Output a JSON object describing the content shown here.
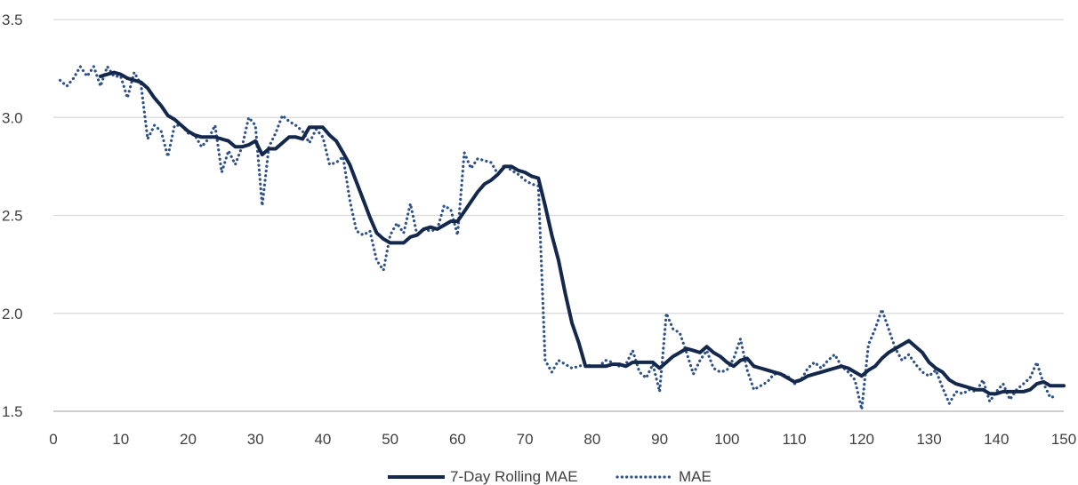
{
  "chart_data": {
    "type": "line",
    "title": "",
    "xlabel": "",
    "ylabel": "",
    "xlim": [
      0,
      150
    ],
    "ylim": [
      1.5,
      3.5
    ],
    "x_ticks": [
      0,
      10,
      20,
      30,
      40,
      50,
      60,
      70,
      80,
      90,
      100,
      110,
      120,
      130,
      140,
      150
    ],
    "y_ticks": [
      1.5,
      2.0,
      2.5,
      3.0,
      3.5
    ],
    "x_tick_labels": [
      "0",
      "10",
      "20",
      "30",
      "40",
      "50",
      "60",
      "70",
      "80",
      "90",
      "100",
      "110",
      "120",
      "130",
      "140",
      "150"
    ],
    "y_tick_labels": [
      "1.5",
      "2.0",
      "2.5",
      "3.0",
      "3.5"
    ],
    "grid": "horizontal",
    "legend_position": "bottom",
    "colors": {
      "rolling": "#14284b",
      "mae": "#2e5288",
      "grid": "#d9d9d9",
      "axis": "#bfbfbf"
    },
    "series": [
      {
        "name": "7-Day Rolling MAE",
        "style": "solid",
        "points": [
          [
            7,
            3.21
          ],
          [
            8,
            3.22
          ],
          [
            9,
            3.23
          ],
          [
            10,
            3.22
          ],
          [
            11,
            3.2
          ],
          [
            12,
            3.19
          ],
          [
            13,
            3.18
          ],
          [
            14,
            3.15
          ],
          [
            15,
            3.1
          ],
          [
            16,
            3.06
          ],
          [
            17,
            3.01
          ],
          [
            18,
            2.99
          ],
          [
            19,
            2.96
          ],
          [
            20,
            2.93
          ],
          [
            21,
            2.91
          ],
          [
            22,
            2.9
          ],
          [
            23,
            2.9
          ],
          [
            24,
            2.9
          ],
          [
            25,
            2.89
          ],
          [
            26,
            2.88
          ],
          [
            27,
            2.85
          ],
          [
            28,
            2.85
          ],
          [
            29,
            2.86
          ],
          [
            30,
            2.88
          ],
          [
            31,
            2.81
          ],
          [
            32,
            2.84
          ],
          [
            33,
            2.84
          ],
          [
            34,
            2.87
          ],
          [
            35,
            2.9
          ],
          [
            36,
            2.9
          ],
          [
            37,
            2.89
          ],
          [
            38,
            2.95
          ],
          [
            39,
            2.95
          ],
          [
            40,
            2.95
          ],
          [
            41,
            2.91
          ],
          [
            42,
            2.88
          ],
          [
            43,
            2.82
          ],
          [
            44,
            2.76
          ],
          [
            45,
            2.67
          ],
          [
            46,
            2.58
          ],
          [
            47,
            2.49
          ],
          [
            48,
            2.41
          ],
          [
            49,
            2.38
          ],
          [
            50,
            2.36
          ],
          [
            51,
            2.36
          ],
          [
            52,
            2.36
          ],
          [
            53,
            2.39
          ],
          [
            54,
            2.4
          ],
          [
            55,
            2.43
          ],
          [
            56,
            2.44
          ],
          [
            57,
            2.43
          ],
          [
            58,
            2.45
          ],
          [
            59,
            2.47
          ],
          [
            60,
            2.47
          ],
          [
            61,
            2.52
          ],
          [
            62,
            2.57
          ],
          [
            63,
            2.62
          ],
          [
            64,
            2.66
          ],
          [
            65,
            2.68
          ],
          [
            66,
            2.71
          ],
          [
            67,
            2.75
          ],
          [
            68,
            2.75
          ],
          [
            69,
            2.73
          ],
          [
            70,
            2.72
          ],
          [
            71,
            2.7
          ],
          [
            72,
            2.69
          ],
          [
            73,
            2.55
          ],
          [
            74,
            2.4
          ],
          [
            75,
            2.27
          ],
          [
            76,
            2.1
          ],
          [
            77,
            1.95
          ],
          [
            78,
            1.85
          ],
          [
            79,
            1.73
          ],
          [
            80,
            1.73
          ],
          [
            81,
            1.73
          ],
          [
            82,
            1.73
          ],
          [
            83,
            1.74
          ],
          [
            84,
            1.74
          ],
          [
            85,
            1.73
          ],
          [
            86,
            1.75
          ],
          [
            87,
            1.75
          ],
          [
            88,
            1.75
          ],
          [
            89,
            1.75
          ],
          [
            90,
            1.72
          ],
          [
            91,
            1.75
          ],
          [
            92,
            1.78
          ],
          [
            93,
            1.8
          ],
          [
            94,
            1.82
          ],
          [
            95,
            1.81
          ],
          [
            96,
            1.8
          ],
          [
            97,
            1.83
          ],
          [
            98,
            1.8
          ],
          [
            99,
            1.78
          ],
          [
            100,
            1.75
          ],
          [
            101,
            1.73
          ],
          [
            102,
            1.76
          ],
          [
            103,
            1.77
          ],
          [
            104,
            1.73
          ],
          [
            105,
            1.72
          ],
          [
            106,
            1.71
          ],
          [
            107,
            1.7
          ],
          [
            108,
            1.69
          ],
          [
            109,
            1.67
          ],
          [
            110,
            1.65
          ],
          [
            111,
            1.66
          ],
          [
            112,
            1.68
          ],
          [
            113,
            1.69
          ],
          [
            114,
            1.7
          ],
          [
            115,
            1.71
          ],
          [
            116,
            1.72
          ],
          [
            117,
            1.73
          ],
          [
            118,
            1.72
          ],
          [
            119,
            1.7
          ],
          [
            120,
            1.68
          ],
          [
            121,
            1.71
          ],
          [
            122,
            1.73
          ],
          [
            123,
            1.77
          ],
          [
            124,
            1.8
          ],
          [
            125,
            1.82
          ],
          [
            126,
            1.84
          ],
          [
            127,
            1.86
          ],
          [
            128,
            1.83
          ],
          [
            129,
            1.8
          ],
          [
            130,
            1.75
          ],
          [
            131,
            1.72
          ],
          [
            132,
            1.7
          ],
          [
            133,
            1.66
          ],
          [
            134,
            1.64
          ],
          [
            135,
            1.63
          ],
          [
            136,
            1.62
          ],
          [
            137,
            1.61
          ],
          [
            138,
            1.61
          ],
          [
            139,
            1.59
          ],
          [
            140,
            1.59
          ],
          [
            141,
            1.6
          ],
          [
            142,
            1.6
          ],
          [
            143,
            1.6
          ],
          [
            144,
            1.6
          ],
          [
            145,
            1.61
          ],
          [
            146,
            1.64
          ],
          [
            147,
            1.65
          ],
          [
            148,
            1.63
          ],
          [
            149,
            1.63
          ],
          [
            150,
            1.63
          ]
        ]
      },
      {
        "name": "MAE",
        "style": "dotted",
        "points": [
          [
            1,
            3.19
          ],
          [
            2,
            3.16
          ],
          [
            3,
            3.2
          ],
          [
            4,
            3.26
          ],
          [
            5,
            3.21
          ],
          [
            6,
            3.26
          ],
          [
            7,
            3.16
          ],
          [
            8,
            3.26
          ],
          [
            9,
            3.21
          ],
          [
            10,
            3.21
          ],
          [
            11,
            3.1
          ],
          [
            12,
            3.23
          ],
          [
            13,
            3.17
          ],
          [
            14,
            2.89
          ],
          [
            15,
            2.96
          ],
          [
            16,
            2.93
          ],
          [
            17,
            2.8
          ],
          [
            18,
            2.96
          ],
          [
            19,
            2.96
          ],
          [
            20,
            2.92
          ],
          [
            21,
            2.91
          ],
          [
            22,
            2.85
          ],
          [
            23,
            2.89
          ],
          [
            24,
            2.96
          ],
          [
            25,
            2.72
          ],
          [
            26,
            2.83
          ],
          [
            27,
            2.76
          ],
          [
            28,
            2.85
          ],
          [
            29,
            3.0
          ],
          [
            30,
            2.96
          ],
          [
            31,
            2.55
          ],
          [
            32,
            2.85
          ],
          [
            33,
            2.92
          ],
          [
            34,
            3.01
          ],
          [
            35,
            2.98
          ],
          [
            36,
            2.96
          ],
          [
            37,
            2.93
          ],
          [
            38,
            2.87
          ],
          [
            39,
            2.94
          ],
          [
            40,
            2.9
          ],
          [
            41,
            2.76
          ],
          [
            42,
            2.77
          ],
          [
            43,
            2.8
          ],
          [
            44,
            2.58
          ],
          [
            45,
            2.42
          ],
          [
            46,
            2.4
          ],
          [
            47,
            2.42
          ],
          [
            48,
            2.27
          ],
          [
            49,
            2.22
          ],
          [
            50,
            2.4
          ],
          [
            51,
            2.46
          ],
          [
            52,
            2.41
          ],
          [
            53,
            2.56
          ],
          [
            54,
            2.4
          ],
          [
            55,
            2.43
          ],
          [
            56,
            2.42
          ],
          [
            57,
            2.43
          ],
          [
            58,
            2.55
          ],
          [
            59,
            2.53
          ],
          [
            60,
            2.4
          ],
          [
            61,
            2.82
          ],
          [
            62,
            2.74
          ],
          [
            63,
            2.79
          ],
          [
            64,
            2.78
          ],
          [
            65,
            2.77
          ],
          [
            66,
            2.71
          ],
          [
            67,
            2.76
          ],
          [
            68,
            2.73
          ],
          [
            69,
            2.71
          ],
          [
            70,
            2.68
          ],
          [
            71,
            2.66
          ],
          [
            72,
            2.65
          ],
          [
            73,
            1.76
          ],
          [
            74,
            1.7
          ],
          [
            75,
            1.76
          ],
          [
            76,
            1.74
          ],
          [
            77,
            1.72
          ],
          [
            78,
            1.73
          ],
          [
            79,
            1.74
          ],
          [
            80,
            1.73
          ],
          [
            81,
            1.73
          ],
          [
            82,
            1.76
          ],
          [
            83,
            1.75
          ],
          [
            84,
            1.73
          ],
          [
            85,
            1.74
          ],
          [
            86,
            1.81
          ],
          [
            87,
            1.7
          ],
          [
            88,
            1.67
          ],
          [
            89,
            1.74
          ],
          [
            90,
            1.6
          ],
          [
            91,
            2.0
          ],
          [
            92,
            1.92
          ],
          [
            93,
            1.9
          ],
          [
            94,
            1.8
          ],
          [
            95,
            1.69
          ],
          [
            96,
            1.76
          ],
          [
            97,
            1.81
          ],
          [
            98,
            1.72
          ],
          [
            99,
            1.7
          ],
          [
            100,
            1.71
          ],
          [
            101,
            1.77
          ],
          [
            102,
            1.87
          ],
          [
            103,
            1.71
          ],
          [
            104,
            1.61
          ],
          [
            105,
            1.63
          ],
          [
            106,
            1.65
          ],
          [
            107,
            1.69
          ],
          [
            108,
            1.69
          ],
          [
            109,
            1.68
          ],
          [
            110,
            1.64
          ],
          [
            111,
            1.66
          ],
          [
            112,
            1.72
          ],
          [
            113,
            1.75
          ],
          [
            114,
            1.72
          ],
          [
            115,
            1.76
          ],
          [
            116,
            1.79
          ],
          [
            117,
            1.73
          ],
          [
            118,
            1.7
          ],
          [
            119,
            1.66
          ],
          [
            120,
            1.51
          ],
          [
            121,
            1.84
          ],
          [
            122,
            1.92
          ],
          [
            123,
            2.02
          ],
          [
            124,
            1.92
          ],
          [
            125,
            1.82
          ],
          [
            126,
            1.76
          ],
          [
            127,
            1.79
          ],
          [
            128,
            1.74
          ],
          [
            129,
            1.7
          ],
          [
            130,
            1.68
          ],
          [
            131,
            1.71
          ],
          [
            132,
            1.62
          ],
          [
            133,
            1.54
          ],
          [
            134,
            1.6
          ],
          [
            135,
            1.59
          ],
          [
            136,
            1.61
          ],
          [
            137,
            1.6
          ],
          [
            138,
            1.66
          ],
          [
            139,
            1.55
          ],
          [
            140,
            1.6
          ],
          [
            141,
            1.64
          ],
          [
            142,
            1.56
          ],
          [
            143,
            1.61
          ],
          [
            144,
            1.64
          ],
          [
            145,
            1.67
          ],
          [
            146,
            1.75
          ],
          [
            147,
            1.64
          ],
          [
            148,
            1.57
          ],
          [
            149,
            1.58
          ]
        ]
      }
    ]
  }
}
